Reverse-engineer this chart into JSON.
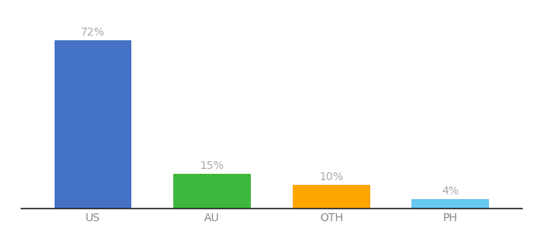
{
  "categories": [
    "US",
    "AU",
    "OTH",
    "PH"
  ],
  "values": [
    72,
    15,
    10,
    4
  ],
  "bar_colors": [
    "#4472C4",
    "#3DB83D",
    "#FFA500",
    "#67C8F0"
  ],
  "value_labels": [
    "72%",
    "15%",
    "10%",
    "4%"
  ],
  "ylim": [
    0,
    82
  ],
  "background_color": "#ffffff",
  "label_color": "#aaaaaa",
  "label_fontsize": 10,
  "tick_fontsize": 10,
  "tick_color": "#888888",
  "bar_width": 0.65
}
